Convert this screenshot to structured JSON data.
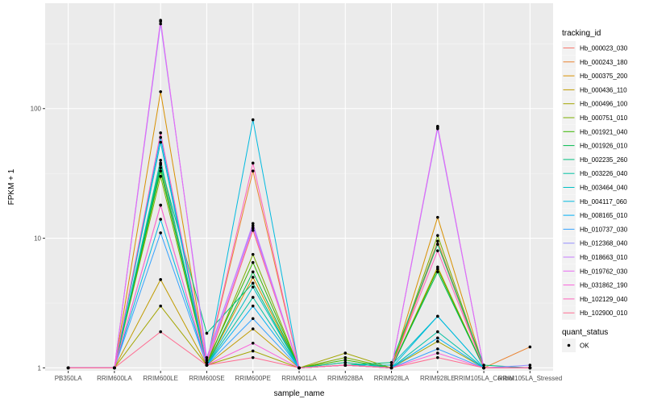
{
  "chart_data": {
    "type": "line",
    "xlabel": "sample_name",
    "ylabel": "FPKM + 1",
    "yscale": "log10",
    "ylim": [
      0.95,
      650
    ],
    "yticks": [
      1,
      10,
      100
    ],
    "ytick_labels": [
      "1",
      "10",
      "100"
    ],
    "grid": true,
    "legend_position": "right",
    "categories": [
      "PB350LA",
      "RRIM600LA",
      "RRIM600LE",
      "RRIM600SE",
      "RRIM600PE",
      "RRIM901LA",
      "RRIM928BA",
      "RRIM928LA",
      "RRIM928LE",
      "RRIM105LA_Control",
      "RRIM105LA_Stressed"
    ],
    "category_labels": [
      "PB350LA",
      "RRIM600LA",
      "RRIM600LE",
      "RRIM600SE",
      "RRIM600PE",
      "RRIM901LA",
      "RRIM928BA",
      "RRIM928LA",
      "RRIM928LE",
      "RRIM105LA_Control",
      "RRIM105LA_Stressed"
    ],
    "legend_title": "tracking_id",
    "series": [
      {
        "name": "Hb_000023_030",
        "color": "#F8766D",
        "values": [
          1,
          1,
          18,
          1.05,
          11.5,
          1,
          1.05,
          1,
          9,
          1,
          1
        ]
      },
      {
        "name": "Hb_000243_180",
        "color": "#EA8331",
        "values": [
          1,
          1,
          38,
          1.1,
          33,
          1,
          1.1,
          1,
          9.5,
          1,
          1.45
        ]
      },
      {
        "name": "Hb_000375_200",
        "color": "#D89000",
        "values": [
          1,
          1,
          135,
          1.05,
          5,
          1,
          1.05,
          1,
          14.5,
          1,
          1
        ]
      },
      {
        "name": "Hb_000436_110",
        "color": "#C09B00",
        "values": [
          1,
          1,
          4.8,
          1.05,
          2,
          1,
          1.05,
          1,
          6,
          1,
          1
        ]
      },
      {
        "name": "Hb_000496_100",
        "color": "#A3A500",
        "values": [
          1,
          1,
          3,
          1.05,
          1.35,
          1,
          1.3,
          1,
          1.6,
          1,
          1
        ]
      },
      {
        "name": "Hb_000751_010",
        "color": "#7CAE00",
        "values": [
          1,
          1,
          30,
          1.05,
          7.5,
          1,
          1.2,
          1,
          10.5,
          1,
          1
        ]
      },
      {
        "name": "Hb_001921_040",
        "color": "#39B600",
        "values": [
          1,
          1,
          33,
          1.1,
          6.5,
          1,
          1.15,
          1,
          5.8,
          1,
          1
        ]
      },
      {
        "name": "Hb_001926_010",
        "color": "#00BB4E",
        "values": [
          1,
          1,
          35,
          1.05,
          5.5,
          1,
          1.05,
          1,
          5.5,
          1,
          1
        ]
      },
      {
        "name": "Hb_002235_260",
        "color": "#00BF7D",
        "values": [
          1,
          1,
          37,
          1.85,
          4.5,
          1,
          1.05,
          1.1,
          9,
          1.05,
          1
        ]
      },
      {
        "name": "Hb_003226_040",
        "color": "#00C1A3",
        "values": [
          1,
          1,
          40,
          1.05,
          3.5,
          1,
          1.1,
          1,
          1.9,
          1,
          1
        ]
      },
      {
        "name": "Hb_003464_040",
        "color": "#00BFC4",
        "values": [
          1,
          1,
          55,
          1.05,
          4.2,
          1,
          1.05,
          1.05,
          2.5,
          1,
          1
        ]
      },
      {
        "name": "Hb_004117_060",
        "color": "#00BAE0",
        "values": [
          1,
          1,
          14,
          1.05,
          82,
          1,
          1.05,
          1,
          2.5,
          1,
          1
        ]
      },
      {
        "name": "Hb_008165_010",
        "color": "#00B0F6",
        "values": [
          1,
          1,
          60,
          1.05,
          3,
          1,
          1.05,
          1,
          1.7,
          1,
          1
        ]
      },
      {
        "name": "Hb_010737_030",
        "color": "#35A2FF",
        "values": [
          1,
          1,
          11,
          1.05,
          2.4,
          1,
          1.05,
          1,
          1.4,
          1,
          1
        ]
      },
      {
        "name": "Hb_012368_040",
        "color": "#9590FF",
        "values": [
          1,
          1,
          450,
          1.2,
          12.5,
          1,
          1.05,
          1,
          70,
          1,
          1.05
        ]
      },
      {
        "name": "Hb_018663_010",
        "color": "#C77CFF",
        "values": [
          1,
          1,
          470,
          1.15,
          13,
          1,
          1.05,
          1,
          72,
          1,
          1
        ]
      },
      {
        "name": "Hb_019762_030",
        "color": "#E76BF3",
        "values": [
          1,
          1,
          480,
          1.1,
          12,
          1,
          1.05,
          1,
          73,
          1,
          1
        ]
      },
      {
        "name": "Hb_031862_190",
        "color": "#FA62DB",
        "values": [
          1,
          1,
          18,
          1.05,
          1.55,
          1,
          1.05,
          1,
          1.3,
          1,
          1
        ]
      },
      {
        "name": "Hb_102129_040",
        "color": "#FF62BC",
        "values": [
          1,
          1,
          65,
          1.1,
          38,
          1,
          1.05,
          1,
          8,
          1,
          1
        ]
      },
      {
        "name": "Hb_102900_010",
        "color": "#FF6C91",
        "values": [
          1,
          1,
          1.9,
          1.05,
          1.2,
          1,
          1.05,
          1,
          1.2,
          1,
          1
        ]
      }
    ],
    "quant_legend_title": "quant_status",
    "quant_legend_items": [
      "OK"
    ]
  }
}
